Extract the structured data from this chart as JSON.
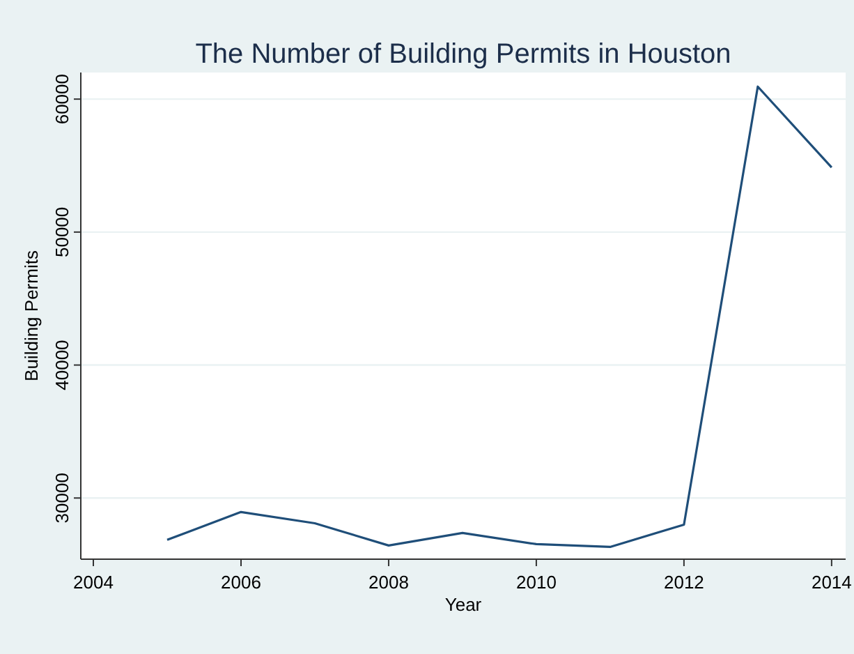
{
  "chart_data": {
    "type": "line",
    "title": "The Number of Building Permits in Houston",
    "xlabel": "Year",
    "ylabel": "Building Permits",
    "x": [
      2005,
      2006,
      2007,
      2008,
      2009,
      2010,
      2011,
      2012,
      2013,
      2014
    ],
    "series": [
      {
        "color": "#1f4e79",
        "values": [
          26850,
          28950,
          28100,
          26430,
          27370,
          26530,
          26320,
          28000,
          60940,
          54860
        ]
      }
    ],
    "xlim": [
      2003.83,
      2014.19
    ],
    "xticks": [
      2004,
      2006,
      2008,
      2010,
      2012,
      2014
    ],
    "ylim": [
      25400,
      62000
    ],
    "yticks": [
      30000,
      40000,
      50000,
      60000
    ],
    "grid": "y",
    "line_style": "solid",
    "marker": "none"
  }
}
